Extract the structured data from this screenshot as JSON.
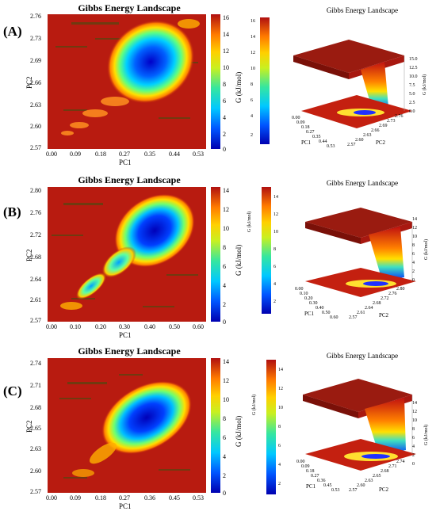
{
  "chart_data": [
    {
      "panel_label": "(A)",
      "type": "heatmap",
      "title": "Gibbs Energy Landscape",
      "xlabel": "PC1",
      "ylabel": "PC2",
      "x_ticks": [
        "0.00",
        "0.09",
        "0.18",
        "0.27",
        "0.35",
        "0.44",
        "0.53"
      ],
      "y_ticks": [
        "2.57",
        "2.60",
        "2.63",
        "2.66",
        "2.69",
        "2.73",
        "2.76"
      ],
      "colorbar_label": "G (kJ/mol)",
      "colorbar_ticks": [
        "0",
        "2",
        "4",
        "6",
        "8",
        "10",
        "12",
        "14",
        "16"
      ],
      "colorbar2_ticks": [
        "2",
        "4",
        "6",
        "8",
        "10",
        "12",
        "14",
        "16"
      ],
      "surface_title": "Gibbs Energy Landscape",
      "surface_x_ticks": [
        "0.00",
        "0.09",
        "0.18",
        "0.27",
        "0.35",
        "0.44",
        "0.53"
      ],
      "surface_y_ticks": [
        "2.57",
        "2.60",
        "2.63",
        "2.66",
        "2.69",
        "2.73",
        "2.76"
      ],
      "surface_z_ticks": [
        "0.0",
        "2.5",
        "5.0",
        "7.5",
        "10.0",
        "12.5",
        "15.0"
      ],
      "minima": [
        {
          "x": 0.42,
          "y": 2.69
        }
      ]
    },
    {
      "panel_label": "(B)",
      "type": "heatmap",
      "title": "Gibbs Energy Landscape",
      "xlabel": "PC1",
      "ylabel": "PC2",
      "x_ticks": [
        "0.00",
        "0.10",
        "0.20",
        "0.30",
        "0.40",
        "0.50",
        "0.60"
      ],
      "y_ticks": [
        "2.57",
        "2.61",
        "2.64",
        "2.68",
        "2.72",
        "2.76",
        "2.80"
      ],
      "colorbar_label": "G (kJ/mol)",
      "colorbar_ticks": [
        "0",
        "2",
        "4",
        "6",
        "8",
        "10",
        "12",
        "14"
      ],
      "colorbar2_ticks": [
        "2",
        "4",
        "6",
        "8",
        "10",
        "12",
        "14"
      ],
      "surface_title": "Gibbs Energy Landscape",
      "surface_x_ticks": [
        "0.00",
        "0.10",
        "0.20",
        "0.30",
        "0.40",
        "0.50",
        "0.60"
      ],
      "surface_y_ticks": [
        "2.57",
        "2.61",
        "2.64",
        "2.68",
        "2.72",
        "2.76",
        "2.80"
      ],
      "surface_z_ticks": [
        "0",
        "2",
        "4",
        "6",
        "8",
        "10",
        "12",
        "14"
      ],
      "minima": [
        {
          "x": 0.46,
          "y": 2.73
        }
      ]
    },
    {
      "panel_label": "(C)",
      "type": "heatmap",
      "title": "Gibbs Energy Landscape",
      "xlabel": "PC1",
      "ylabel": "PC2",
      "x_ticks": [
        "0.00",
        "0.09",
        "0.18",
        "0.27",
        "0.36",
        "0.45",
        "0.53"
      ],
      "y_ticks": [
        "2.57",
        "2.60",
        "2.63",
        "2.65",
        "2.68",
        "2.71",
        "2.74"
      ],
      "colorbar_label": "G (kJ/mol)",
      "colorbar_ticks": [
        "0",
        "2",
        "4",
        "6",
        "8",
        "10",
        "12",
        "14"
      ],
      "colorbar2_ticks": [
        "2",
        "4",
        "6",
        "8",
        "10",
        "12",
        "14"
      ],
      "surface_title": "Gibbs Energy Landscape",
      "surface_x_ticks": [
        "0.00",
        "0.09",
        "0.18",
        "0.27",
        "0.36",
        "0.45",
        "0.53"
      ],
      "surface_y_ticks": [
        "2.57",
        "2.60",
        "2.63",
        "2.65",
        "2.68",
        "2.71",
        "2.74"
      ],
      "surface_z_ticks": [
        "0",
        "2",
        "4",
        "6",
        "8",
        "10",
        "12",
        "14"
      ],
      "minima": [
        {
          "x": 0.4,
          "y": 2.69
        }
      ]
    }
  ]
}
